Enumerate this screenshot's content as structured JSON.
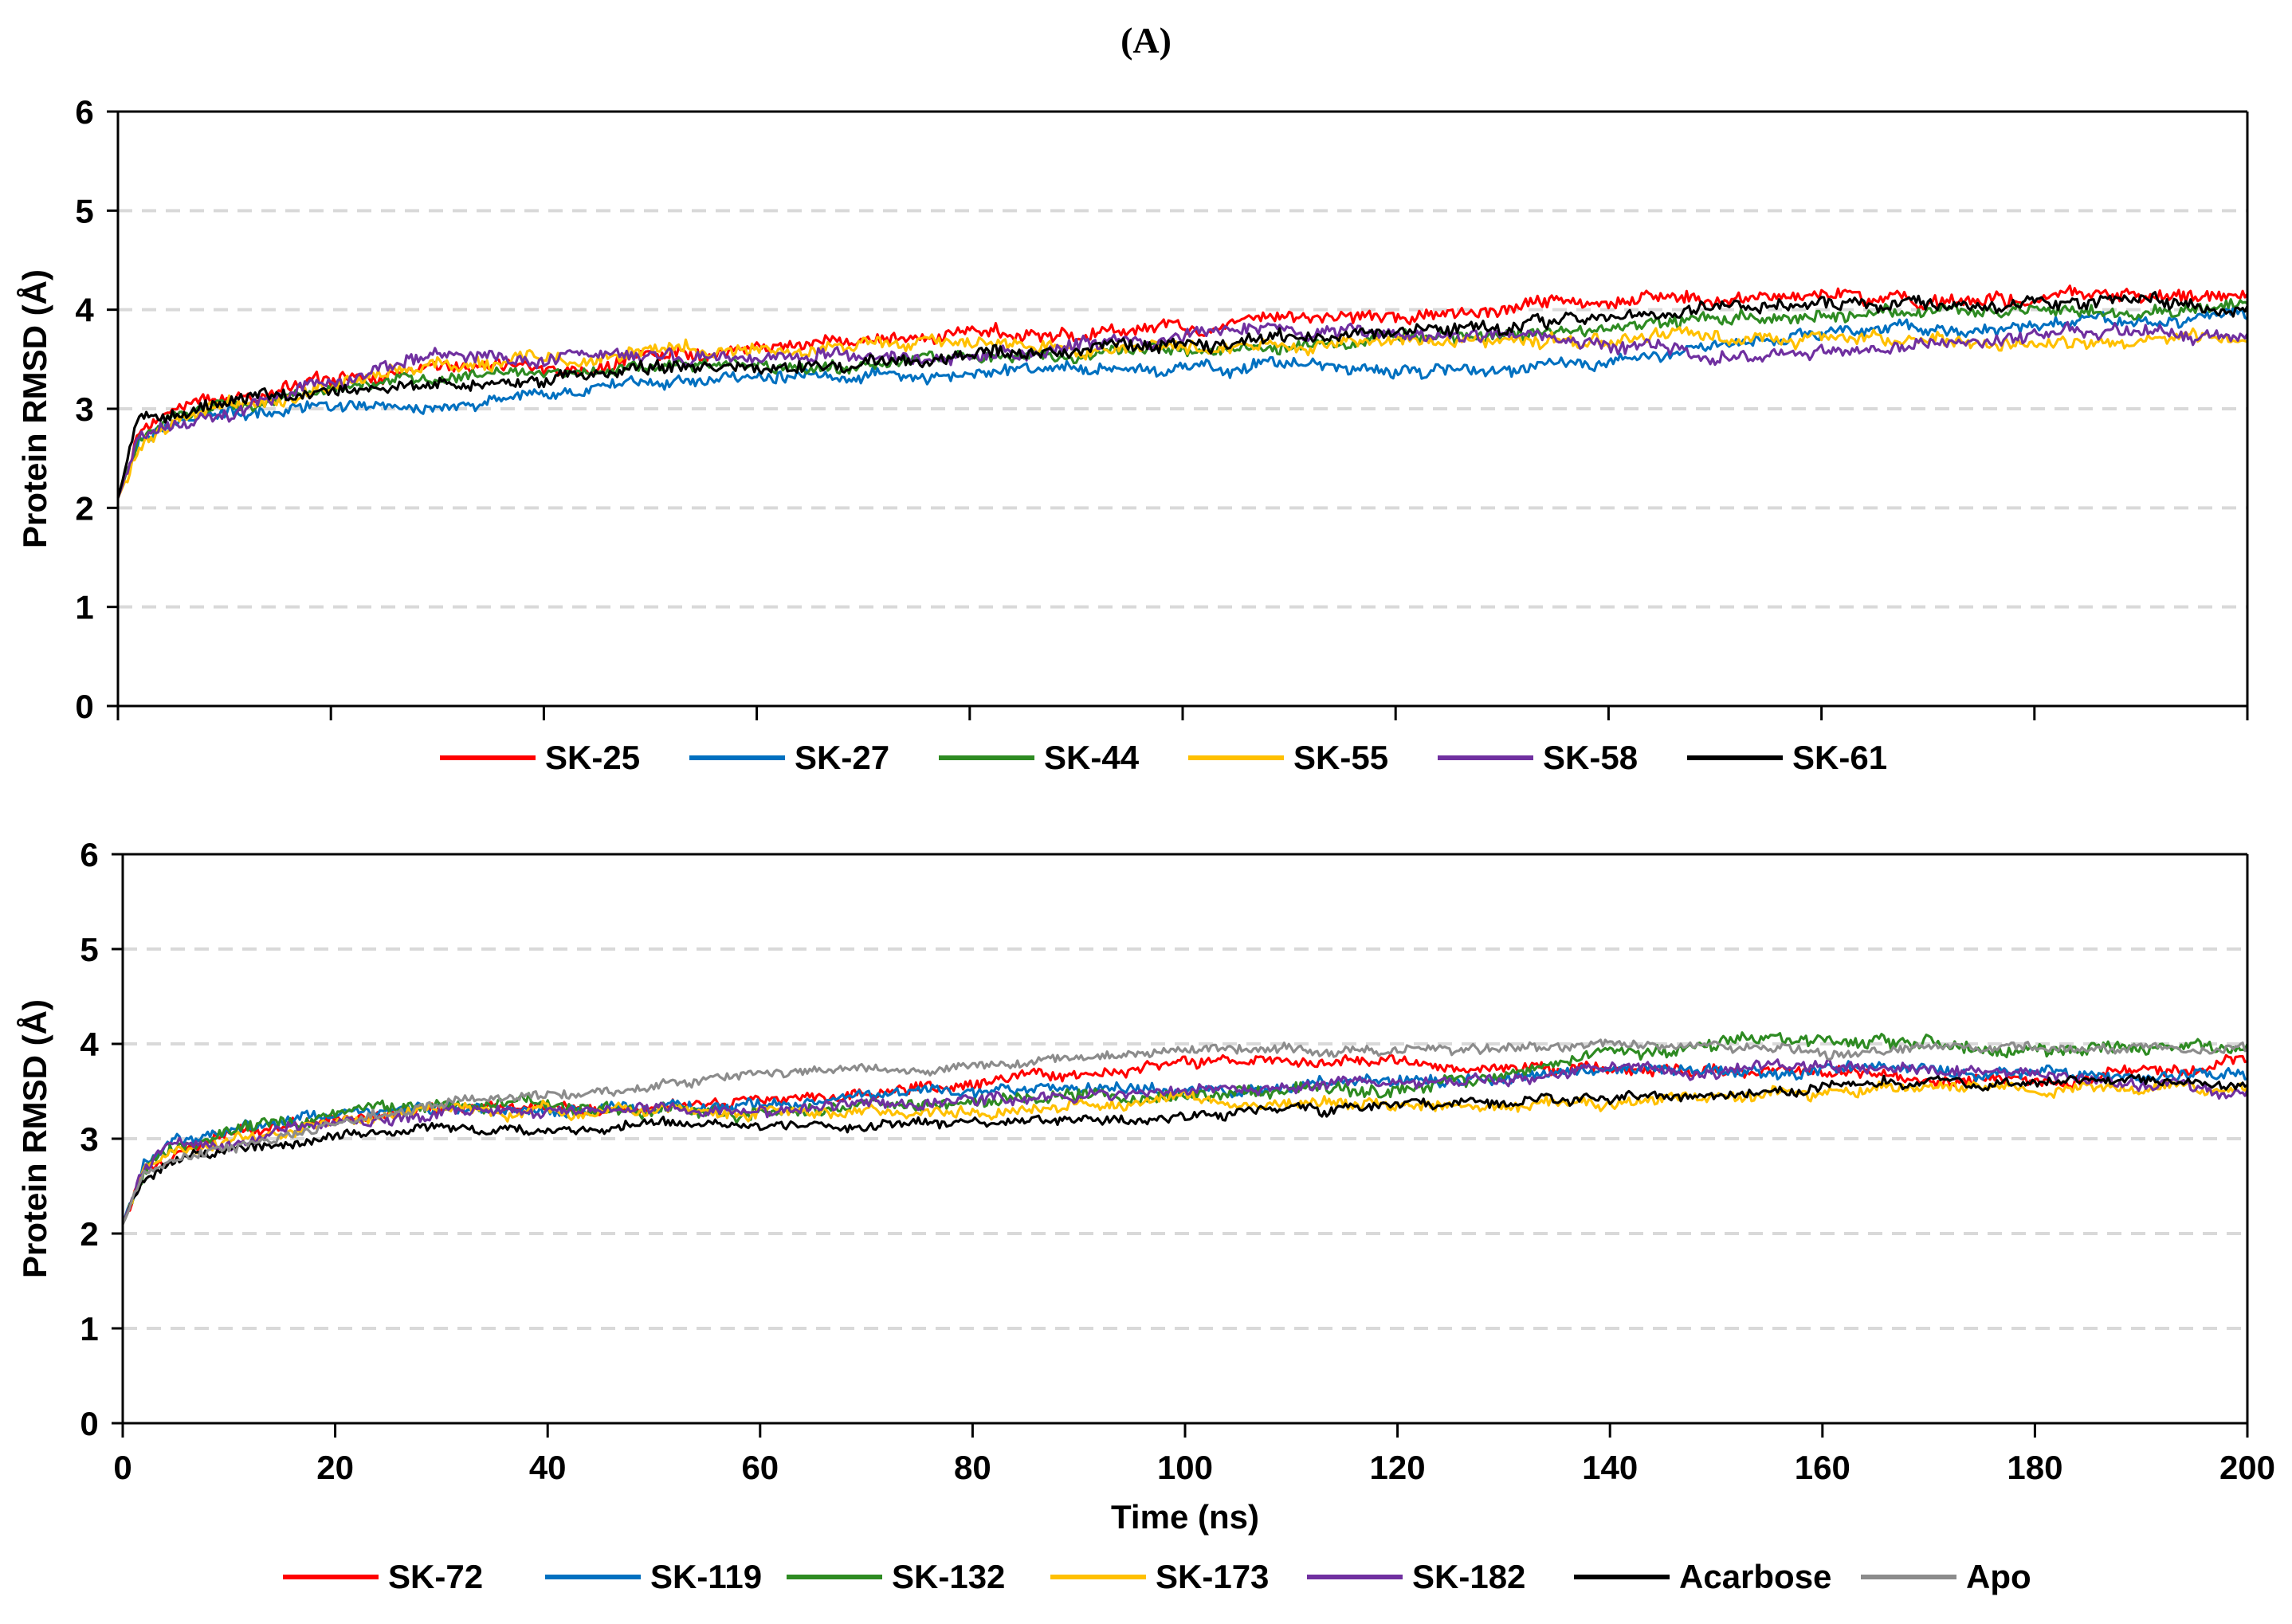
{
  "panel_label": "(A)",
  "chart_data": [
    {
      "type": "line",
      "title": "",
      "xlabel": "",
      "ylabel": "Protein RMSD (Å)",
      "xlim": [
        0,
        200
      ],
      "ylim": [
        0,
        6
      ],
      "xticks": [
        0,
        20,
        40,
        60,
        80,
        100,
        120,
        140,
        160,
        180,
        200
      ],
      "yticks": [
        0,
        1,
        2,
        3,
        4,
        5,
        6
      ],
      "show_xtick_labels": false,
      "grid": "horizontal dashed",
      "legend_position": "bottom",
      "series": [
        {
          "name": "SK-25",
          "color": "#ff0000",
          "x": [
            0,
            2,
            5,
            10,
            15,
            20,
            30,
            40,
            50,
            60,
            70,
            80,
            90,
            100,
            110,
            120,
            130,
            140,
            150,
            160,
            170,
            180,
            190,
            200
          ],
          "values": [
            2.1,
            2.8,
            3.0,
            3.1,
            3.2,
            3.3,
            3.4,
            3.4,
            3.5,
            3.6,
            3.7,
            3.75,
            3.8,
            3.85,
            3.9,
            3.95,
            4.0,
            4.1,
            4.15,
            4.15,
            4.1,
            4.1,
            4.15,
            4.15
          ],
          "noise": 0.08
        },
        {
          "name": "SK-27",
          "color": "#0070c0",
          "x": [
            0,
            2,
            5,
            10,
            15,
            20,
            30,
            40,
            50,
            60,
            70,
            80,
            90,
            100,
            110,
            120,
            130,
            140,
            150,
            160,
            170,
            180,
            190,
            200
          ],
          "values": [
            2.1,
            2.7,
            2.9,
            2.95,
            3.0,
            3.0,
            3.05,
            3.15,
            3.25,
            3.35,
            3.35,
            3.35,
            3.4,
            3.45,
            3.45,
            3.4,
            3.4,
            3.5,
            3.65,
            3.75,
            3.8,
            3.85,
            3.9,
            3.9
          ],
          "noise": 0.07
        },
        {
          "name": "SK-44",
          "color": "#2e8b22",
          "x": [
            0,
            2,
            5,
            10,
            15,
            20,
            30,
            40,
            50,
            60,
            70,
            80,
            90,
            100,
            110,
            120,
            130,
            140,
            150,
            160,
            170,
            180,
            190,
            200
          ],
          "values": [
            2.1,
            2.7,
            2.9,
            3.0,
            3.1,
            3.2,
            3.3,
            3.35,
            3.4,
            3.45,
            3.45,
            3.5,
            3.55,
            3.6,
            3.65,
            3.7,
            3.75,
            3.85,
            3.9,
            3.95,
            4.0,
            4.0,
            4.0,
            4.05
          ],
          "noise": 0.07
        },
        {
          "name": "SK-55",
          "color": "#ffc000",
          "x": [
            0,
            2,
            5,
            10,
            15,
            20,
            30,
            40,
            50,
            60,
            70,
            80,
            90,
            100,
            110,
            120,
            130,
            140,
            150,
            160,
            170,
            180,
            190,
            200
          ],
          "values": [
            2.1,
            2.6,
            2.85,
            3.0,
            3.1,
            3.25,
            3.45,
            3.5,
            3.55,
            3.6,
            3.65,
            3.65,
            3.6,
            3.65,
            3.65,
            3.65,
            3.7,
            3.7,
            3.75,
            3.7,
            3.7,
            3.7,
            3.7,
            3.7
          ],
          "noise": 0.08
        },
        {
          "name": "SK-58",
          "color": "#7030a0",
          "x": [
            0,
            2,
            5,
            10,
            15,
            20,
            30,
            40,
            50,
            60,
            70,
            80,
            90,
            100,
            110,
            120,
            130,
            140,
            150,
            160,
            170,
            180,
            190,
            200
          ],
          "values": [
            2.1,
            2.7,
            2.9,
            3.0,
            3.1,
            3.3,
            3.5,
            3.5,
            3.5,
            3.55,
            3.55,
            3.55,
            3.6,
            3.7,
            3.75,
            3.75,
            3.75,
            3.65,
            3.55,
            3.55,
            3.65,
            3.75,
            3.75,
            3.7
          ],
          "noise": 0.08
        },
        {
          "name": "SK-61",
          "color": "#000000",
          "x": [
            0,
            2,
            5,
            10,
            15,
            20,
            30,
            40,
            50,
            60,
            70,
            80,
            90,
            100,
            110,
            120,
            130,
            140,
            150,
            160,
            170,
            180,
            190,
            200
          ],
          "values": [
            2.1,
            2.9,
            2.95,
            3.05,
            3.15,
            3.2,
            3.2,
            3.3,
            3.4,
            3.45,
            3.45,
            3.55,
            3.6,
            3.6,
            3.75,
            3.8,
            3.85,
            3.95,
            4.0,
            4.05,
            4.05,
            4.1,
            4.1,
            4.05
          ],
          "noise": 0.08
        }
      ]
    },
    {
      "type": "line",
      "title": "",
      "xlabel": "Time (ns)",
      "ylabel": "Protein RMSD (Å)",
      "xlim": [
        0,
        200
      ],
      "ylim": [
        0,
        6
      ],
      "xticks": [
        0,
        20,
        40,
        60,
        80,
        100,
        120,
        140,
        160,
        180,
        200
      ],
      "yticks": [
        0,
        1,
        2,
        3,
        4,
        5,
        6
      ],
      "show_xtick_labels": true,
      "grid": "horizontal dashed",
      "legend_position": "bottom",
      "series": [
        {
          "name": "SK-72",
          "color": "#ff0000",
          "x": [
            0,
            2,
            5,
            10,
            15,
            20,
            30,
            40,
            50,
            60,
            70,
            80,
            90,
            100,
            110,
            120,
            130,
            140,
            150,
            160,
            170,
            180,
            190,
            200
          ],
          "values": [
            2.1,
            2.7,
            2.9,
            3.05,
            3.15,
            3.25,
            3.35,
            3.35,
            3.35,
            3.45,
            3.5,
            3.55,
            3.65,
            3.8,
            3.8,
            3.8,
            3.75,
            3.75,
            3.75,
            3.7,
            3.65,
            3.65,
            3.7,
            3.85
          ],
          "noise": 0.07
        },
        {
          "name": "SK-119",
          "color": "#0070c0",
          "x": [
            0,
            2,
            5,
            10,
            15,
            20,
            30,
            40,
            50,
            60,
            70,
            80,
            90,
            100,
            110,
            120,
            130,
            140,
            150,
            160,
            170,
            180,
            190,
            200
          ],
          "values": [
            2.1,
            2.8,
            3.0,
            3.1,
            3.2,
            3.25,
            3.3,
            3.3,
            3.3,
            3.35,
            3.45,
            3.5,
            3.5,
            3.5,
            3.55,
            3.6,
            3.65,
            3.7,
            3.7,
            3.7,
            3.7,
            3.7,
            3.65,
            3.65
          ],
          "noise": 0.07
        },
        {
          "name": "SK-132",
          "color": "#2e8b22",
          "x": [
            0,
            2,
            5,
            10,
            15,
            20,
            30,
            40,
            50,
            60,
            70,
            80,
            90,
            100,
            110,
            120,
            130,
            140,
            150,
            160,
            170,
            180,
            190,
            200
          ],
          "values": [
            2.1,
            2.7,
            2.9,
            3.05,
            3.15,
            3.25,
            3.35,
            3.35,
            3.3,
            3.3,
            3.35,
            3.4,
            3.45,
            3.5,
            3.5,
            3.55,
            3.65,
            3.95,
            4.0,
            4.05,
            4.0,
            3.95,
            3.95,
            3.95
          ],
          "noise": 0.08
        },
        {
          "name": "SK-173",
          "color": "#ffc000",
          "x": [
            0,
            2,
            5,
            10,
            15,
            20,
            30,
            40,
            50,
            60,
            70,
            80,
            90,
            100,
            110,
            120,
            130,
            140,
            150,
            160,
            170,
            180,
            190,
            200
          ],
          "values": [
            2.1,
            2.7,
            2.9,
            3.0,
            3.1,
            3.2,
            3.3,
            3.3,
            3.3,
            3.3,
            3.3,
            3.3,
            3.35,
            3.4,
            3.35,
            3.35,
            3.35,
            3.4,
            3.45,
            3.5,
            3.55,
            3.55,
            3.55,
            3.55
          ],
          "noise": 0.07
        },
        {
          "name": "SK-182",
          "color": "#7030a0",
          "x": [
            0,
            2,
            5,
            10,
            15,
            20,
            30,
            40,
            50,
            60,
            70,
            80,
            90,
            100,
            110,
            120,
            130,
            140,
            150,
            160,
            170,
            180,
            190,
            200
          ],
          "values": [
            2.1,
            2.7,
            2.9,
            3.0,
            3.1,
            3.2,
            3.3,
            3.3,
            3.3,
            3.3,
            3.35,
            3.4,
            3.45,
            3.5,
            3.55,
            3.6,
            3.65,
            3.7,
            3.7,
            3.75,
            3.75,
            3.7,
            3.6,
            3.45
          ],
          "noise": 0.07
        },
        {
          "name": "Acarbose",
          "color": "#000000",
          "x": [
            0,
            2,
            5,
            10,
            15,
            20,
            30,
            40,
            50,
            60,
            70,
            80,
            90,
            100,
            110,
            120,
            130,
            140,
            150,
            160,
            170,
            180,
            190,
            200
          ],
          "values": [
            2.1,
            2.6,
            2.75,
            2.85,
            2.95,
            3.05,
            3.1,
            3.1,
            3.15,
            3.1,
            3.15,
            3.15,
            3.2,
            3.25,
            3.3,
            3.35,
            3.4,
            3.4,
            3.45,
            3.55,
            3.6,
            3.6,
            3.6,
            3.55
          ],
          "noise": 0.06
        },
        {
          "name": "Apo",
          "color": "#8c8c8c",
          "x": [
            0,
            2,
            5,
            10,
            15,
            20,
            30,
            40,
            50,
            60,
            70,
            80,
            90,
            100,
            110,
            120,
            130,
            140,
            150,
            160,
            170,
            180,
            190,
            200
          ],
          "values": [
            2.1,
            2.6,
            2.8,
            2.9,
            3.0,
            3.2,
            3.4,
            3.45,
            3.55,
            3.7,
            3.7,
            3.75,
            3.85,
            3.95,
            3.95,
            3.95,
            3.95,
            4.0,
            3.95,
            3.95,
            3.95,
            3.95,
            3.95,
            3.95
          ],
          "noise": 0.06
        }
      ]
    }
  ]
}
